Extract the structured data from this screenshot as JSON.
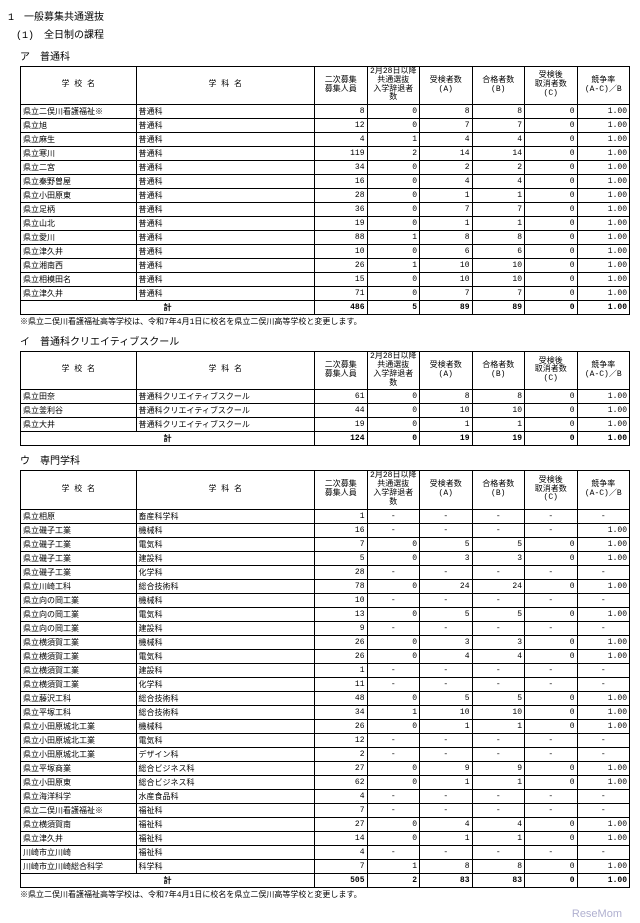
{
  "heading": "1　一般募集共通選抜",
  "subheading": "(1)　全日制の課程",
  "footer_brand": "ReseMom",
  "headers": {
    "school": "学 校 名",
    "dept": "学 科 名",
    "h1": "二次募集\n募集人員",
    "h2": "2月28日以降\n共通選抜\n入学辞退者数",
    "h3": "受検者数\n(A)",
    "h4": "合格者数\n(B)",
    "h5": "受検後\n取消者数\n(C)",
    "h6": "競争率\n(A-C)／B"
  },
  "section_a": {
    "label": "ア　普通科",
    "rows": [
      {
        "s": "県立二俣川看護福祉※",
        "d": "普通科",
        "c": [
          "8",
          "0",
          "8",
          "8",
          "0",
          "1.00"
        ]
      },
      {
        "s": "県立旭",
        "d": "普通科",
        "c": [
          "12",
          "0",
          "7",
          "7",
          "0",
          "1.00"
        ]
      },
      {
        "s": "県立麻生",
        "d": "普通科",
        "c": [
          "4",
          "1",
          "4",
          "4",
          "0",
          "1.00"
        ]
      },
      {
        "s": "県立寒川",
        "d": "普通科",
        "c": [
          "119",
          "2",
          "14",
          "14",
          "0",
          "1.00"
        ]
      },
      {
        "s": "県立二宮",
        "d": "普通科",
        "c": [
          "34",
          "0",
          "2",
          "2",
          "0",
          "1.00"
        ]
      },
      {
        "s": "県立秦野曽屋",
        "d": "普通科",
        "c": [
          "16",
          "0",
          "4",
          "4",
          "0",
          "1.00"
        ]
      },
      {
        "s": "県立小田原東",
        "d": "普通科",
        "c": [
          "28",
          "0",
          "1",
          "1",
          "0",
          "1.00"
        ]
      },
      {
        "s": "県立足柄",
        "d": "普通科",
        "c": [
          "36",
          "0",
          "7",
          "7",
          "0",
          "1.00"
        ]
      },
      {
        "s": "県立山北",
        "d": "普通科",
        "c": [
          "19",
          "0",
          "1",
          "1",
          "0",
          "1.00"
        ]
      },
      {
        "s": "県立愛川",
        "d": "普通科",
        "c": [
          "88",
          "1",
          "8",
          "8",
          "0",
          "1.00"
        ]
      },
      {
        "s": "県立津久井",
        "d": "普通科",
        "c": [
          "10",
          "0",
          "6",
          "6",
          "0",
          "1.00"
        ]
      },
      {
        "s": "県立湘南西",
        "d": "普通科",
        "c": [
          "26",
          "1",
          "10",
          "10",
          "0",
          "1.00"
        ]
      },
      {
        "s": "県立相模田名",
        "d": "普通科",
        "c": [
          "15",
          "0",
          "10",
          "10",
          "0",
          "1.00"
        ]
      },
      {
        "s": "県立津久井",
        "d": "普通科",
        "c": [
          "71",
          "0",
          "7",
          "7",
          "0",
          "1.00"
        ]
      }
    ],
    "total": {
      "label": "計",
      "c": [
        "486",
        "5",
        "89",
        "89",
        "0",
        "1.00"
      ]
    },
    "note": "※県立二俣川看護福祉高等学校は、令和7年4月1日に校名を県立二俣川高等学校と変更します。"
  },
  "section_b": {
    "label": "イ　普通科クリエイティブスクール",
    "rows": [
      {
        "s": "県立田奈",
        "d": "普通科クリエイティブスクール",
        "c": [
          "61",
          "0",
          "8",
          "8",
          "0",
          "1.00"
        ]
      },
      {
        "s": "県立釜利谷",
        "d": "普通科クリエイティブスクール",
        "c": [
          "44",
          "0",
          "10",
          "10",
          "0",
          "1.00"
        ]
      },
      {
        "s": "県立大井",
        "d": "普通科クリエイティブスクール",
        "c": [
          "19",
          "0",
          "1",
          "1",
          "0",
          "1.00"
        ]
      }
    ],
    "total": {
      "label": "計",
      "c": [
        "124",
        "0",
        "19",
        "19",
        "0",
        "1.00"
      ]
    }
  },
  "section_c": {
    "label": "ウ　専門学科",
    "rows": [
      {
        "s": "県立相原",
        "d": "畜産科学科",
        "c": [
          "1",
          "-",
          "-",
          "-",
          "-",
          "-"
        ]
      },
      {
        "s": "県立磯子工業",
        "d": "機械科",
        "c": [
          "16",
          "-",
          "-",
          "-",
          "-",
          "1.00"
        ]
      },
      {
        "s": "県立磯子工業",
        "d": "電気科",
        "c": [
          "7",
          "0",
          "5",
          "5",
          "0",
          "1.00"
        ]
      },
      {
        "s": "県立磯子工業",
        "d": "建設科",
        "c": [
          "5",
          "0",
          "3",
          "3",
          "0",
          "1.00"
        ]
      },
      {
        "s": "県立磯子工業",
        "d": "化学科",
        "c": [
          "28",
          "-",
          "-",
          "-",
          "-",
          "-"
        ]
      },
      {
        "s": "県立川崎工科",
        "d": "総合技術科",
        "c": [
          "78",
          "0",
          "24",
          "24",
          "0",
          "1.00"
        ]
      },
      {
        "s": "県立向の岡工業",
        "d": "機械科",
        "c": [
          "10",
          "-",
          "-",
          "-",
          "-",
          "-"
        ]
      },
      {
        "s": "県立向の岡工業",
        "d": "電気科",
        "c": [
          "13",
          "0",
          "5",
          "5",
          "0",
          "1.00"
        ]
      },
      {
        "s": "県立向の岡工業",
        "d": "建設科",
        "c": [
          "9",
          "-",
          "-",
          "-",
          "-",
          "-"
        ]
      },
      {
        "s": "県立横須賀工業",
        "d": "機械科",
        "c": [
          "26",
          "0",
          "3",
          "3",
          "0",
          "1.00"
        ]
      },
      {
        "s": "県立横須賀工業",
        "d": "電気科",
        "c": [
          "26",
          "0",
          "4",
          "4",
          "0",
          "1.00"
        ]
      },
      {
        "s": "県立横須賀工業",
        "d": "建設科",
        "c": [
          "1",
          "-",
          "-",
          "-",
          "-",
          "-"
        ]
      },
      {
        "s": "県立横須賀工業",
        "d": "化学科",
        "c": [
          "11",
          "-",
          "-",
          "-",
          "-",
          "-"
        ]
      },
      {
        "s": "県立藤沢工科",
        "d": "総合技術科",
        "c": [
          "48",
          "0",
          "5",
          "5",
          "0",
          "1.00"
        ]
      },
      {
        "s": "県立平塚工科",
        "d": "総合技術科",
        "c": [
          "34",
          "1",
          "10",
          "10",
          "0",
          "1.00"
        ]
      },
      {
        "s": "県立小田原城北工業",
        "d": "機械科",
        "c": [
          "26",
          "0",
          "1",
          "1",
          "0",
          "1.00"
        ]
      },
      {
        "s": "県立小田原城北工業",
        "d": "電気科",
        "c": [
          "12",
          "-",
          "-",
          "-",
          "-",
          "-"
        ]
      },
      {
        "s": "県立小田原城北工業",
        "d": "デザイン科",
        "c": [
          "2",
          "-",
          "-",
          "-",
          "-",
          "-"
        ]
      },
      {
        "s": "県立平塚商業",
        "d": "総合ビジネス科",
        "c": [
          "27",
          "0",
          "9",
          "9",
          "0",
          "1.00"
        ]
      },
      {
        "s": "県立小田原東",
        "d": "総合ビジネス科",
        "c": [
          "62",
          "0",
          "1",
          "1",
          "0",
          "1.00"
        ]
      },
      {
        "s": "県立海洋科学",
        "d": "水産食品科",
        "c": [
          "4",
          "-",
          "-",
          "-",
          "-",
          "-"
        ]
      },
      {
        "s": "県立二俣川看護福祉※",
        "d": "福祉科",
        "c": [
          "7",
          "-",
          "-",
          "-",
          "-",
          "-"
        ]
      },
      {
        "s": "県立横須賀南",
        "d": "福祉科",
        "c": [
          "27",
          "0",
          "4",
          "4",
          "0",
          "1.00"
        ]
      },
      {
        "s": "県立津久井",
        "d": "福祉科",
        "c": [
          "14",
          "0",
          "1",
          "1",
          "0",
          "1.00"
        ]
      },
      {
        "s": "川崎市立川崎",
        "d": "福祉科",
        "c": [
          "4",
          "-",
          "-",
          "-",
          "-",
          "-"
        ]
      },
      {
        "s": "川崎市立川崎総合科学",
        "d": "科学科",
        "c": [
          "7",
          "1",
          "8",
          "8",
          "0",
          "1.00"
        ]
      }
    ],
    "total": {
      "label": "計",
      "c": [
        "505",
        "2",
        "83",
        "83",
        "0",
        "1.00"
      ]
    },
    "note": "※県立二俣川看護福祉高等学校は、令和7年4月1日に校名を県立二俣川高等学校と変更します。"
  }
}
